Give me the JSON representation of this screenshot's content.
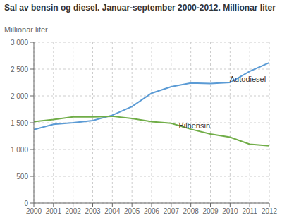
{
  "chart_data": {
    "type": "line",
    "title": "Sal av bensin og diesel. Januar-september 2000-2012. Millionar liter",
    "ylabel": "Millionar liter",
    "x": [
      2000,
      2001,
      2002,
      2003,
      2004,
      2005,
      2006,
      2007,
      2008,
      2009,
      2010,
      2011,
      2012
    ],
    "series": [
      {
        "name": "Autodiesel",
        "color": "#5b9bd5",
        "values": [
          1370,
          1470,
          1500,
          1540,
          1640,
          1800,
          2050,
          2170,
          2240,
          2230,
          2250,
          2460,
          2620
        ]
      },
      {
        "name": "Bilbensin",
        "color": "#70ad47",
        "values": [
          1520,
          1560,
          1610,
          1610,
          1620,
          1580,
          1520,
          1490,
          1380,
          1290,
          1230,
          1100,
          1070
        ]
      }
    ],
    "xlim": [
      2000,
      2012
    ],
    "xticks": [
      2000,
      2001,
      2002,
      2003,
      2004,
      2005,
      2006,
      2007,
      2008,
      2009,
      2010,
      2011,
      2012
    ],
    "ylim": [
      0,
      3000
    ],
    "yticks": [
      0,
      500,
      {
        "value": 1000,
        "label": "1 000"
      },
      {
        "value": 1500,
        "label": "1 500"
      },
      {
        "value": 2000,
        "label": "2 000"
      },
      {
        "value": 2500,
        "label": "2 500"
      },
      {
        "value": 3000,
        "label": "3 000"
      }
    ],
    "grid": true,
    "annotations": [
      {
        "text": "Autodiesel",
        "x": 2009.8,
        "y": 2320
      },
      {
        "text": "Bilbensin",
        "x": 2007.2,
        "y": 1440
      }
    ]
  }
}
